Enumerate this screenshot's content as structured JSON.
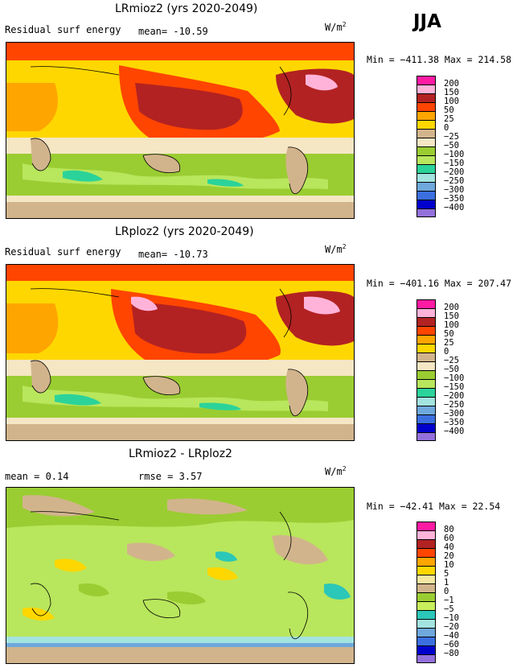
{
  "season": "JJA",
  "units_main": "W/m",
  "units_sup": "2",
  "panels": [
    {
      "title": "LRmioz2 (yrs 2020-2049)",
      "subtitle_left": "Residual surf energy",
      "mean_text": "mean= -10.59",
      "minmax": "Min = −411.38 Max = 214.58"
    },
    {
      "title": "LRploz2 (yrs 2020-2049)",
      "subtitle_left": "Residual surf energy",
      "mean_text": "mean= -10.73",
      "minmax": "Min = −401.16 Max = 207.47"
    },
    {
      "title": "LRmioz2 - LRploz2",
      "mean_text": "mean =    0.14",
      "rmse_text": "rmse =    3.57",
      "minmax": "Min = −42.41 Max =  22.54"
    }
  ],
  "chart_data": [
    {
      "type": "heatmap",
      "title": "LRmioz2 (yrs 2020-2049)",
      "field": "Residual surf energy",
      "mean": -10.59,
      "min": -411.38,
      "max": 214.58,
      "units": "W/m2",
      "colorbar_levels": [
        "200",
        "150",
        "100",
        "50",
        "25",
        "0",
        "−25",
        "−50",
        "−100",
        "−150",
        "−200",
        "−250",
        "−300",
        "−350",
        "−400"
      ],
      "colorbar_colors": [
        "#ff1aa3",
        "#ffb3d9",
        "#b22222",
        "#ff4500",
        "#ffa500",
        "#ffd700",
        "#d2b48c",
        "#f5e6c4",
        "#9acd32",
        "#b8e65c",
        "#2bd39a",
        "#a3e3e0",
        "#6fa8dc",
        "#3b6fe0",
        "#0000cd",
        "#9370db"
      ]
    },
    {
      "type": "heatmap",
      "title": "LRploz2 (yrs 2020-2049)",
      "field": "Residual surf energy",
      "mean": -10.73,
      "min": -401.16,
      "max": 207.47,
      "units": "W/m2",
      "colorbar_levels": [
        "200",
        "150",
        "100",
        "50",
        "25",
        "0",
        "−25",
        "−50",
        "−100",
        "−150",
        "−200",
        "−250",
        "−300",
        "−350",
        "−400"
      ],
      "colorbar_colors": [
        "#ff1aa3",
        "#ffb3d9",
        "#b22222",
        "#ff4500",
        "#ffa500",
        "#ffd700",
        "#d2b48c",
        "#f5e6c4",
        "#9acd32",
        "#b8e65c",
        "#2bd39a",
        "#a3e3e0",
        "#6fa8dc",
        "#3b6fe0",
        "#0000cd",
        "#9370db"
      ]
    },
    {
      "type": "heatmap",
      "title": "LRmioz2 - LRploz2",
      "mean": 0.14,
      "rmse": 3.57,
      "min": -42.41,
      "max": 22.54,
      "units": "W/m2",
      "colorbar_levels": [
        "80",
        "60",
        "40",
        "20",
        "10",
        "5",
        "1",
        "0",
        "−1",
        "−5",
        "−10",
        "−20",
        "−40",
        "−60",
        "−80"
      ],
      "colorbar_colors": [
        "#ff1aa3",
        "#ffb3d9",
        "#b22222",
        "#ff4500",
        "#ffa500",
        "#ffd700",
        "#f5e6a0",
        "#d2b48c",
        "#9acd32",
        "#c8f05c",
        "#2bc7b8",
        "#a3e3e0",
        "#6fa8dc",
        "#3b6fe0",
        "#0000cd",
        "#9370db"
      ]
    }
  ]
}
